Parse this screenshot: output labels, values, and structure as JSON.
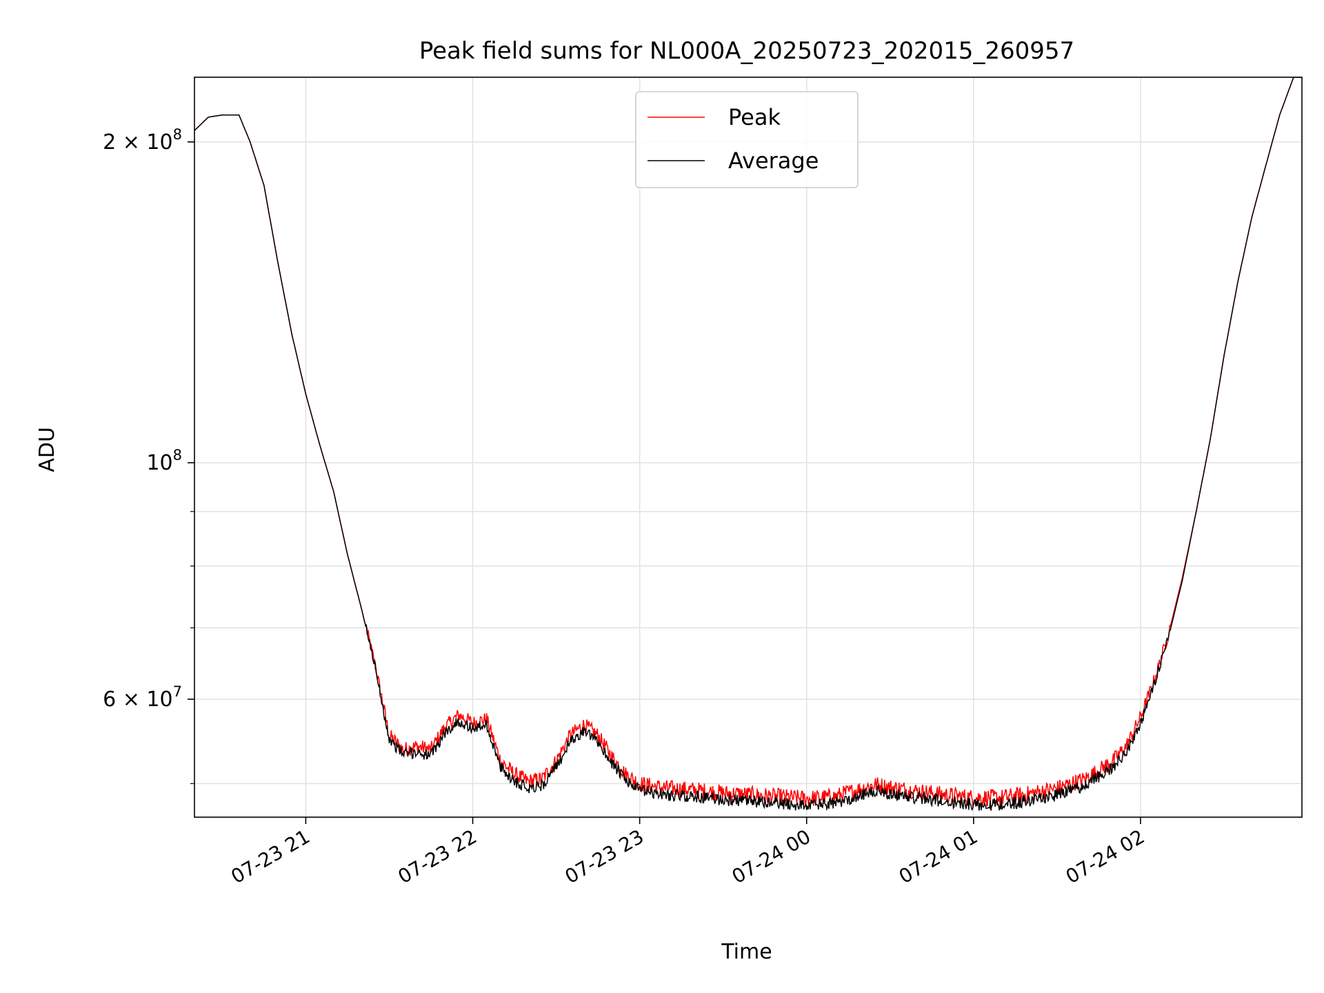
{
  "chart_data": {
    "type": "line",
    "title": "Peak field sums for NL000A_20250723_202015_260957",
    "xlabel": "Time",
    "ylabel": "ADU",
    "xlim": [
      "2025-07-23 20:20",
      "2025-07-24 02:58"
    ],
    "ylim": [
      46500000,
      230000000
    ],
    "y_scale": "log",
    "grid": true,
    "legend_position": "top-center",
    "x_ticks": [
      {
        "t": "2025-07-23 21:00",
        "label": "07-23 21"
      },
      {
        "t": "2025-07-23 22:00",
        "label": "07-23 22"
      },
      {
        "t": "2025-07-23 23:00",
        "label": "07-23 23"
      },
      {
        "t": "2025-07-24 00:00",
        "label": "07-24 00"
      },
      {
        "t": "2025-07-24 01:00",
        "label": "07-24 01"
      },
      {
        "t": "2025-07-24 02:00",
        "label": "07-24 02"
      }
    ],
    "y_ticks_major": [
      {
        "value": 60000000,
        "mantissa": "6",
        "exponent": "7"
      },
      {
        "value": 100000000,
        "mantissa": "",
        "exponent": "8"
      },
      {
        "value": 200000000,
        "mantissa": "2",
        "exponent": "8"
      }
    ],
    "y_ticks_minor": [
      50000000,
      70000000,
      80000000,
      90000000
    ],
    "times_sign": "×",
    "base": "10",
    "series": [
      {
        "name": "Peak",
        "color": "#ff0000",
        "noise": 900000,
        "x": [
          "2025-07-23 20:20",
          "2025-07-23 20:25",
          "2025-07-23 20:30",
          "2025-07-23 20:36",
          "2025-07-23 20:40",
          "2025-07-23 20:45",
          "2025-07-23 20:50",
          "2025-07-23 20:55",
          "2025-07-23 21:00",
          "2025-07-23 21:05",
          "2025-07-23 21:10",
          "2025-07-23 21:15",
          "2025-07-23 21:20",
          "2025-07-23 21:25",
          "2025-07-23 21:30",
          "2025-07-23 21:35",
          "2025-07-23 21:40",
          "2025-07-23 21:45",
          "2025-07-23 21:50",
          "2025-07-23 21:55",
          "2025-07-23 22:00",
          "2025-07-23 22:05",
          "2025-07-23 22:10",
          "2025-07-23 22:15",
          "2025-07-23 22:20",
          "2025-07-23 22:25",
          "2025-07-23 22:30",
          "2025-07-23 22:35",
          "2025-07-23 22:40",
          "2025-07-23 22:45",
          "2025-07-23 22:50",
          "2025-07-23 22:55",
          "2025-07-23 23:00",
          "2025-07-23 23:05",
          "2025-07-23 23:10",
          "2025-07-23 23:20",
          "2025-07-23 23:30",
          "2025-07-23 23:40",
          "2025-07-23 23:50",
          "2025-07-24 00:00",
          "2025-07-24 00:10",
          "2025-07-24 00:20",
          "2025-07-24 00:25",
          "2025-07-24 00:30",
          "2025-07-24 00:40",
          "2025-07-24 00:50",
          "2025-07-24 01:00",
          "2025-07-24 01:10",
          "2025-07-24 01:20",
          "2025-07-24 01:30",
          "2025-07-24 01:40",
          "2025-07-24 01:50",
          "2025-07-24 01:55",
          "2025-07-24 02:00",
          "2025-07-24 02:05",
          "2025-07-24 02:10",
          "2025-07-24 02:15",
          "2025-07-24 02:20",
          "2025-07-24 02:25",
          "2025-07-24 02:30",
          "2025-07-24 02:35",
          "2025-07-24 02:40",
          "2025-07-24 02:45",
          "2025-07-24 02:50",
          "2025-07-24 02:55",
          "2025-07-24 02:58"
        ],
        "y": [
          205000000,
          211000000,
          212000000,
          212000000,
          200000000,
          182000000,
          154000000,
          132000000,
          116000000,
          104000000,
          94000000,
          82000000,
          73000000,
          64500000,
          55500000,
          53800000,
          54200000,
          53800000,
          56500000,
          58000000,
          57000000,
          57500000,
          52500000,
          51000000,
          50200000,
          50500000,
          52500000,
          55500000,
          56800000,
          55500000,
          53000000,
          51000000,
          50000000,
          49700000,
          49500000,
          49300000,
          49000000,
          48800000,
          48600000,
          48400000,
          48600000,
          49500000,
          49900000,
          49600000,
          49200000,
          48800000,
          48500000,
          48500000,
          48900000,
          49500000,
          50500000,
          52500000,
          54300000,
          57700000,
          62600000,
          69000000,
          78000000,
          90000000,
          105000000,
          126000000,
          148000000,
          170000000,
          190000000,
          212000000,
          230000000,
          230000000
        ]
      },
      {
        "name": "Average",
        "color": "#000000",
        "noise": 650000,
        "x": [
          "2025-07-23 20:20",
          "2025-07-23 20:25",
          "2025-07-23 20:30",
          "2025-07-23 20:36",
          "2025-07-23 20:40",
          "2025-07-23 20:45",
          "2025-07-23 20:50",
          "2025-07-23 20:55",
          "2025-07-23 21:00",
          "2025-07-23 21:05",
          "2025-07-23 21:10",
          "2025-07-23 21:15",
          "2025-07-23 21:20",
          "2025-07-23 21:25",
          "2025-07-23 21:30",
          "2025-07-23 21:35",
          "2025-07-23 21:40",
          "2025-07-23 21:45",
          "2025-07-23 21:50",
          "2025-07-23 21:55",
          "2025-07-23 22:00",
          "2025-07-23 22:05",
          "2025-07-23 22:10",
          "2025-07-23 22:15",
          "2025-07-23 22:20",
          "2025-07-23 22:25",
          "2025-07-23 22:30",
          "2025-07-23 22:35",
          "2025-07-23 22:40",
          "2025-07-23 22:45",
          "2025-07-23 22:50",
          "2025-07-23 22:55",
          "2025-07-23 23:00",
          "2025-07-23 23:05",
          "2025-07-23 23:10",
          "2025-07-23 23:20",
          "2025-07-23 23:30",
          "2025-07-23 23:40",
          "2025-07-23 23:50",
          "2025-07-24 00:00",
          "2025-07-24 00:10",
          "2025-07-24 00:20",
          "2025-07-24 00:25",
          "2025-07-24 00:30",
          "2025-07-24 00:40",
          "2025-07-24 00:50",
          "2025-07-24 01:00",
          "2025-07-24 01:10",
          "2025-07-24 01:20",
          "2025-07-24 01:30",
          "2025-07-24 01:40",
          "2025-07-24 01:50",
          "2025-07-24 01:55",
          "2025-07-24 02:00",
          "2025-07-24 02:05",
          "2025-07-24 02:10",
          "2025-07-24 02:15",
          "2025-07-24 02:20",
          "2025-07-24 02:25",
          "2025-07-24 02:30",
          "2025-07-24 02:35",
          "2025-07-24 02:40",
          "2025-07-24 02:45",
          "2025-07-24 02:50",
          "2025-07-24 02:55",
          "2025-07-24 02:58"
        ],
        "y": [
          205000000,
          211000000,
          212000000,
          212000000,
          200000000,
          182000000,
          154000000,
          132000000,
          116000000,
          104000000,
          94000000,
          82000000,
          73000000,
          64300000,
          55000000,
          53300000,
          53500000,
          53100000,
          55800000,
          57200000,
          56300000,
          56800000,
          51700000,
          50300000,
          49600000,
          49800000,
          51800000,
          54700000,
          56000000,
          54700000,
          52300000,
          50300000,
          49300000,
          49000000,
          48800000,
          48600000,
          48300000,
          48100000,
          47900000,
          47700000,
          47900000,
          48800000,
          49200000,
          48900000,
          48500000,
          48100000,
          47800000,
          47800000,
          48200000,
          48800000,
          49800000,
          51800000,
          53600000,
          57000000,
          62000000,
          68500000,
          77500000,
          90000000,
          105000000,
          126000000,
          148000000,
          170000000,
          190000000,
          212000000,
          230000000,
          230000000
        ]
      }
    ]
  }
}
